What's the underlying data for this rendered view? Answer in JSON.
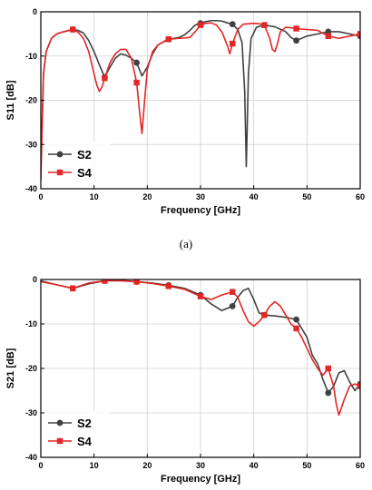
{
  "captions": [
    "(a)"
  ],
  "chart_data": [
    {
      "type": "line",
      "xlabel": "Frequency [GHz]",
      "ylabel": "S11 [dB]",
      "xlim": [
        0,
        60
      ],
      "ylim": [
        -40,
        0
      ],
      "xticks": [
        0,
        10,
        20,
        30,
        40,
        50,
        60
      ],
      "yticks": [
        0,
        -10,
        -20,
        -30,
        -40
      ],
      "grid": true,
      "legend_position": "bottom-left",
      "series": [
        {
          "name": "S2",
          "color": "#404040",
          "marker": "circle",
          "markers_x": [
            6,
            12,
            18,
            24,
            30,
            36,
            42,
            48,
            54,
            60
          ],
          "x": [
            0,
            0.5,
            1,
            2,
            3,
            4,
            5,
            6,
            7,
            8,
            9,
            10,
            11,
            12,
            13,
            14,
            15,
            16,
            17,
            18,
            19,
            20,
            21,
            22,
            23,
            24,
            25,
            26,
            27,
            28,
            29,
            30,
            31,
            32,
            33,
            34,
            35,
            36,
            37,
            37.8,
            38.3,
            38.6,
            39,
            39.5,
            40.5,
            42,
            44,
            46,
            47,
            48,
            50,
            52,
            54,
            56,
            58,
            60
          ],
          "y": [
            -35,
            -14,
            -9,
            -6,
            -5,
            -4.6,
            -4.3,
            -4,
            -4.2,
            -4.8,
            -6.5,
            -9,
            -12,
            -14.8,
            -12.5,
            -10.5,
            -9.5,
            -9.8,
            -10.5,
            -11.5,
            -14.5,
            -12.5,
            -9.5,
            -7.5,
            -6.8,
            -6.2,
            -6,
            -5.8,
            -5.2,
            -4.2,
            -3,
            -2.6,
            -2.2,
            -2,
            -2,
            -2.1,
            -2.5,
            -2.8,
            -4,
            -7,
            -18,
            -35,
            -14,
            -6,
            -3.5,
            -3,
            -3.4,
            -4.5,
            -5.8,
            -6.5,
            -5.5,
            -5,
            -4.5,
            -4.5,
            -5,
            -5.5
          ]
        },
        {
          "name": "S4",
          "color": "#e32626",
          "marker": "square",
          "markers_x": [
            6,
            12,
            18,
            24,
            30,
            36,
            42,
            48,
            54,
            60
          ],
          "x": [
            0,
            0.5,
            1,
            2,
            3,
            4,
            5,
            6,
            7,
            8,
            9,
            10,
            10.5,
            11,
            11.5,
            12,
            13,
            14,
            15,
            16,
            17,
            18,
            18.5,
            19,
            19.5,
            20,
            21,
            22,
            23,
            24,
            26,
            28,
            29,
            30,
            31,
            32,
            33,
            34,
            35,
            35.5,
            36,
            37,
            38,
            40,
            41,
            42,
            43,
            43.5,
            44,
            44.5,
            45,
            46,
            47,
            48,
            50,
            52,
            54,
            56,
            58,
            60
          ],
          "y": [
            -38,
            -14,
            -9,
            -6,
            -5,
            -4.6,
            -4.3,
            -4,
            -4.6,
            -6,
            -9,
            -14,
            -16.5,
            -18,
            -17,
            -15,
            -11.5,
            -9.5,
            -8.5,
            -8.5,
            -10.5,
            -16,
            -22,
            -27.5,
            -20,
            -13,
            -9,
            -7.5,
            -6.8,
            -6.2,
            -6,
            -5.8,
            -4.5,
            -3,
            -2.6,
            -2.5,
            -3,
            -4.5,
            -7.5,
            -9.5,
            -7.2,
            -4,
            -2.8,
            -2.6,
            -2.7,
            -3,
            -6,
            -8.5,
            -9,
            -7,
            -4.5,
            -3.5,
            -3.6,
            -3.8,
            -4,
            -4.2,
            -5.5,
            -6,
            -5.5,
            -5
          ]
        }
      ]
    },
    {
      "type": "line",
      "xlabel": "Frequency [GHz]",
      "ylabel": "S21 [dB]",
      "xlim": [
        0,
        60
      ],
      "ylim": [
        -40,
        0
      ],
      "xticks": [
        0,
        10,
        20,
        30,
        40,
        50,
        60
      ],
      "yticks": [
        0,
        -10,
        -20,
        -30,
        -40
      ],
      "grid": true,
      "legend_position": "bottom-left",
      "series": [
        {
          "name": "S2",
          "color": "#404040",
          "marker": "circle",
          "markers_x": [
            6,
            12,
            18,
            24,
            30,
            36,
            42,
            48,
            54,
            60
          ],
          "x": [
            0,
            3,
            6,
            9,
            12,
            15,
            18,
            21,
            24,
            27,
            30,
            32,
            34,
            36,
            37,
            38,
            39,
            40,
            41,
            42,
            44,
            46,
            48,
            49,
            50,
            51,
            52,
            53,
            54,
            55,
            56,
            57,
            58,
            59,
            60
          ],
          "y": [
            -0.3,
            -1.2,
            -2,
            -1,
            -0.3,
            -0.2,
            -0.5,
            -0.8,
            -1.3,
            -2,
            -3.5,
            -5.5,
            -7,
            -6,
            -4,
            -2.5,
            -2,
            -4.5,
            -7.5,
            -8,
            -8.2,
            -8.5,
            -9,
            -11,
            -13,
            -17,
            -19,
            -22.5,
            -25.5,
            -24,
            -21,
            -20.5,
            -23,
            -25,
            -23.5
          ]
        },
        {
          "name": "S4",
          "color": "#e32626",
          "marker": "square",
          "markers_x": [
            6,
            12,
            18,
            24,
            30,
            36,
            42,
            48,
            54,
            60
          ],
          "x": [
            0,
            3,
            6,
            9,
            12,
            15,
            18,
            21,
            24,
            27,
            30,
            32,
            34,
            36,
            37,
            38,
            39,
            40,
            41,
            42,
            43,
            44,
            45,
            46,
            47,
            48,
            49,
            50,
            51,
            52,
            53,
            54,
            55,
            55.5,
            56,
            57,
            58,
            59,
            60
          ],
          "y": [
            -0.5,
            -1.2,
            -2,
            -0.8,
            -0.3,
            -0.3,
            -0.5,
            -0.9,
            -1.5,
            -2.2,
            -3.8,
            -4.5,
            -3.5,
            -2.8,
            -4,
            -7,
            -9.5,
            -10.5,
            -9.5,
            -8,
            -6,
            -5,
            -6,
            -8,
            -10,
            -11,
            -13,
            -15.5,
            -18,
            -20,
            -21.5,
            -20,
            -24,
            -28,
            -30.5,
            -27,
            -24,
            -23.5,
            -24
          ]
        }
      ]
    }
  ]
}
